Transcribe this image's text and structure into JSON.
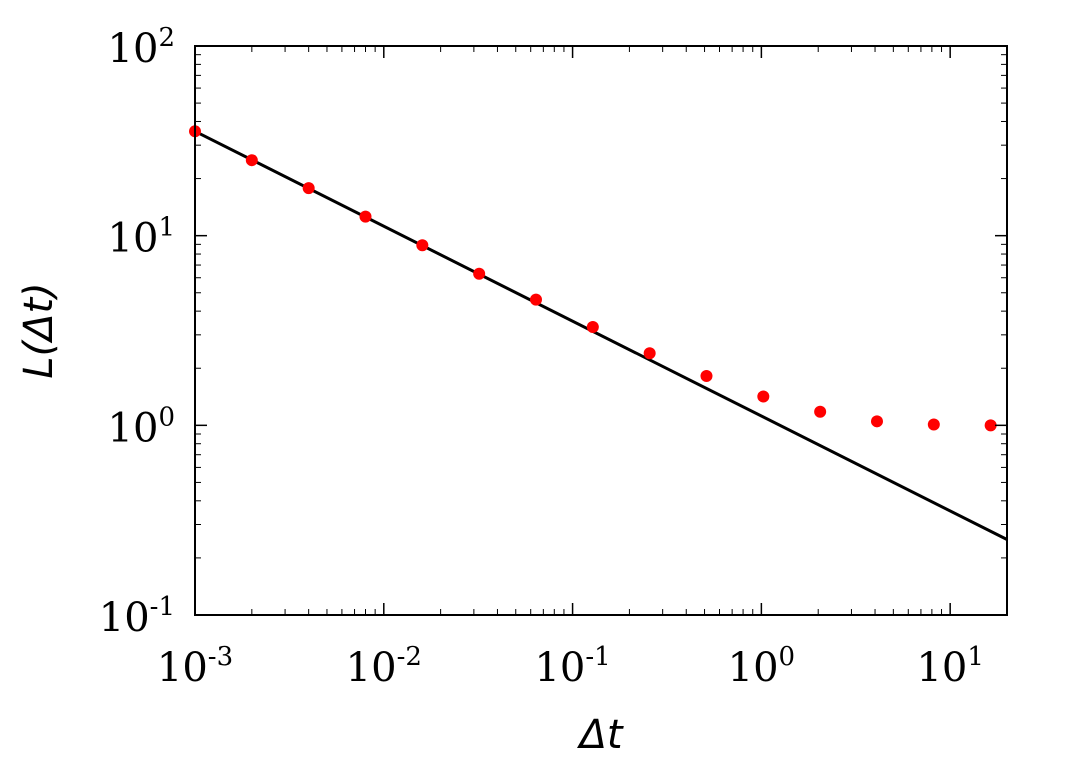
{
  "chart_data": {
    "type": "scatter",
    "xlabel": "Δt",
    "ylabel": "L(Δt)",
    "xscale": "log",
    "yscale": "log",
    "xlim": [
      0.001,
      20
    ],
    "ylim": [
      0.1,
      100
    ],
    "grid": false,
    "x_ticks": [
      {
        "value": 0.001,
        "base": "10",
        "exp": "-3"
      },
      {
        "value": 0.01,
        "base": "10",
        "exp": "-2"
      },
      {
        "value": 0.1,
        "base": "10",
        "exp": "-1"
      },
      {
        "value": 1,
        "base": "10",
        "exp": "0"
      },
      {
        "value": 10,
        "base": "10",
        "exp": "1"
      }
    ],
    "y_ticks": [
      {
        "value": 0.1,
        "base": "10",
        "exp": "-1"
      },
      {
        "value": 1,
        "base": "10",
        "exp": "0"
      },
      {
        "value": 10,
        "base": "10",
        "exp": "1"
      },
      {
        "value": 100,
        "base": "10",
        "exp": "2"
      }
    ],
    "series": [
      {
        "type": "scatter",
        "color": "#ff0000",
        "x": [
          0.001,
          0.002,
          0.004,
          0.008,
          0.016,
          0.032,
          0.064,
          0.128,
          0.256,
          0.512,
          1.024,
          2.048,
          4.096,
          8.192,
          16.384
        ],
        "y": [
          35.5,
          25.0,
          17.8,
          12.6,
          8.9,
          6.3,
          4.6,
          3.3,
          2.4,
          1.82,
          1.42,
          1.18,
          1.05,
          1.01,
          1.0
        ]
      },
      {
        "type": "line",
        "color": "#000000",
        "x": [
          0.001,
          20
        ],
        "y": [
          35.5,
          0.25
        ]
      }
    ]
  }
}
